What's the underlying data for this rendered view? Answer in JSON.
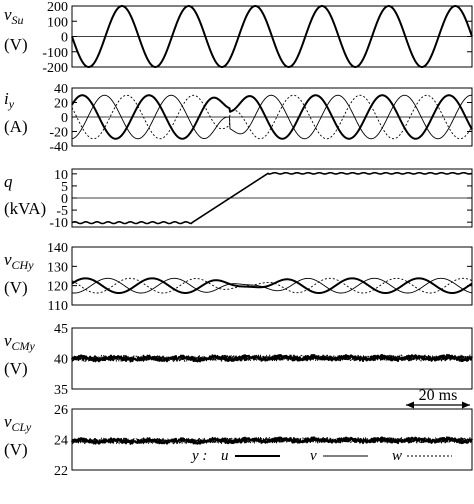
{
  "chart_data": [
    {
      "type": "line",
      "panel": "vSu",
      "ylabel_main": "v",
      "ylabel_sub": "Su",
      "ylabel_unit": "(V)",
      "ylim": [
        -200,
        200
      ],
      "yticks": [
        "200",
        "100",
        "0",
        "-100",
        "-200"
      ],
      "zero_line": true,
      "series": [
        {
          "key": "u",
          "waveform": "sine",
          "amplitude": 200,
          "cycles": 6
        }
      ]
    },
    {
      "type": "line",
      "panel": "iy",
      "ylabel_main": "i",
      "ylabel_sub": "y",
      "ylabel_unit": "(A)",
      "ylim": [
        -40,
        40
      ],
      "yticks": [
        "40",
        "20",
        "0",
        "-20",
        "-40"
      ],
      "zero_line": true,
      "series": [
        {
          "key": "u",
          "waveform": "sine, phase reverses during q ramp",
          "amplitude": 30
        },
        {
          "key": "v",
          "waveform": "sine, phase reverses during q ramp",
          "amplitude": 30
        },
        {
          "key": "w",
          "waveform": "sine, phase reverses during q ramp",
          "amplitude": 30
        }
      ]
    },
    {
      "type": "line",
      "panel": "q",
      "ylabel_main": "q",
      "ylabel_unit": "(kVA)",
      "ylim": [
        -12,
        12
      ],
      "yticks": [
        "10",
        "5",
        "0",
        "-5",
        "-10"
      ],
      "zero_line": true,
      "series": [
        {
          "key": "q",
          "description": "steady at -10, linear ramp to +10, steady at +10",
          "points": [
            [
              0,
              -10.2
            ],
            [
              0.3,
              -10.2
            ],
            [
              0.49,
              10.2
            ],
            [
              1,
              10.2
            ]
          ]
        }
      ]
    },
    {
      "type": "line",
      "panel": "vCHy",
      "ylabel_main": "v",
      "ylabel_sub": "CHy",
      "ylabel_unit": "(V)",
      "ylim": [
        110,
        140
      ],
      "yticks": [
        "140",
        "130",
        "120",
        "110"
      ],
      "series": [
        {
          "key": "u",
          "mean": 120,
          "ripple": 3.8
        },
        {
          "key": "v",
          "mean": 120,
          "ripple": 3.8
        },
        {
          "key": "w",
          "mean": 120,
          "ripple": 3.8
        }
      ]
    },
    {
      "type": "line",
      "panel": "vCMy",
      "ylabel_main": "v",
      "ylabel_sub": "CMy",
      "ylabel_unit": "(V)",
      "ylim": [
        35,
        45
      ],
      "yticks": [
        "45",
        "40",
        "35"
      ],
      "series": [
        {
          "key": "u",
          "mean": 40,
          "ripple": 0.4
        },
        {
          "key": "v",
          "mean": 40,
          "ripple": 0.4
        },
        {
          "key": "w",
          "mean": 40,
          "ripple": 0.4
        }
      ]
    },
    {
      "type": "line",
      "panel": "vCLy",
      "ylabel_main": "v",
      "ylabel_sub": "CLy",
      "ylabel_unit": "(V)",
      "ylim": [
        22,
        26
      ],
      "yticks": [
        "26",
        "24",
        "22"
      ],
      "series": [
        {
          "key": "u",
          "mean": 23.9,
          "ripple": 0.15
        },
        {
          "key": "v",
          "mean": 23.9,
          "ripple": 0.15
        },
        {
          "key": "w",
          "mean": 23.9,
          "ripple": 0.15
        }
      ]
    }
  ],
  "legend": {
    "prefix": "y :",
    "items": [
      {
        "key": "u",
        "label": "u",
        "style": "thick-solid"
      },
      {
        "key": "v",
        "label": "v",
        "style": "thin-solid"
      },
      {
        "key": "w",
        "label": "w",
        "style": "dashed"
      }
    ]
  },
  "time_scale": {
    "label": "20 ms"
  }
}
